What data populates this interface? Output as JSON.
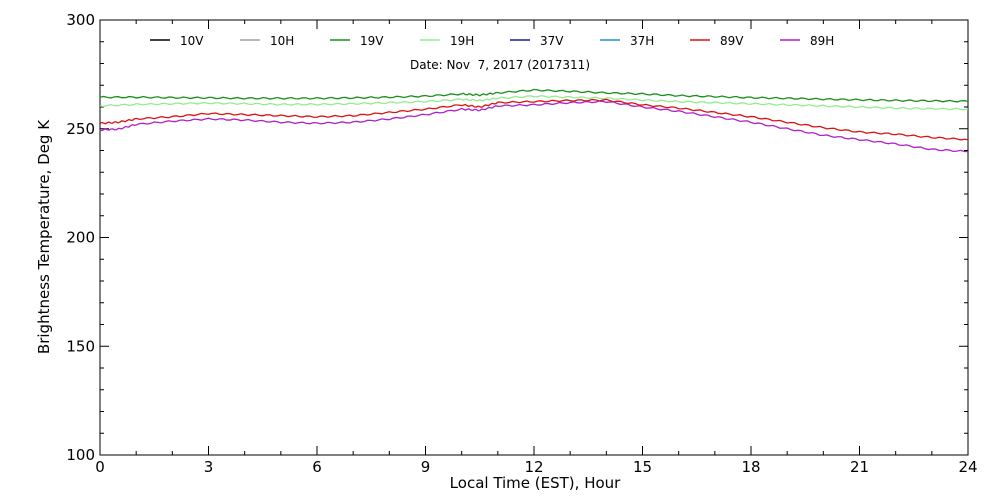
{
  "chart_data": {
    "type": "line",
    "subtitle": "Date: Nov  7, 2017 (2017311)",
    "xlabel": "Local Time (EST), Hour",
    "ylabel": "Brightness Temperature, Deg K",
    "xlim": [
      0,
      24
    ],
    "ylim": [
      100,
      300
    ],
    "x_ticks": [
      0,
      3,
      6,
      9,
      12,
      15,
      18,
      21,
      24
    ],
    "y_ticks": [
      100,
      150,
      200,
      250,
      300
    ],
    "grid": false,
    "legend_position": "top",
    "series": [
      {
        "name": "10V",
        "color": "#000000",
        "x": [],
        "values": []
      },
      {
        "name": "10H",
        "color": "#a0a0a0",
        "x": [],
        "values": []
      },
      {
        "name": "19V",
        "color": "#1a8f1a",
        "x": [
          0,
          1,
          2,
          3,
          4,
          5,
          6,
          7,
          8,
          9,
          10,
          10.5,
          11,
          12,
          13,
          14,
          15,
          16,
          17,
          18,
          19,
          20,
          21,
          22,
          23,
          24
        ],
        "values": [
          264.5,
          264.5,
          264.3,
          264.2,
          264.0,
          264.0,
          264.0,
          264.2,
          264.5,
          265.0,
          266.0,
          265.5,
          266.5,
          267.8,
          267.2,
          266.5,
          266.0,
          265.2,
          264.8,
          264.3,
          264.0,
          263.6,
          263.3,
          263.0,
          262.8,
          262.6
        ]
      },
      {
        "name": "19H",
        "color": "#90ee90",
        "x": [
          0,
          1,
          2,
          3,
          4,
          5,
          6,
          7,
          8,
          9,
          10,
          10.5,
          11,
          12,
          13,
          14,
          15,
          16,
          17,
          18,
          19,
          20,
          21,
          22,
          23,
          24
        ],
        "values": [
          260.5,
          261.2,
          261.5,
          261.8,
          261.5,
          261.2,
          261.2,
          261.5,
          262.0,
          262.5,
          263.5,
          263.0,
          264.0,
          265.0,
          264.5,
          264.0,
          263.2,
          262.5,
          262.0,
          261.5,
          261.0,
          260.5,
          260.0,
          259.5,
          259.2,
          259.0
        ]
      },
      {
        "name": "37V",
        "color": "#1c1c8f",
        "x": [],
        "values": []
      },
      {
        "name": "37H",
        "color": "#1e90c8",
        "x": [],
        "values": []
      },
      {
        "name": "89V",
        "color": "#dd1111",
        "x": [
          0,
          0.5,
          1,
          2,
          3,
          4,
          5,
          6,
          7,
          8,
          9,
          10,
          10.5,
          11,
          12,
          13,
          14,
          15,
          16,
          17,
          18,
          19,
          20,
          21,
          22,
          23,
          24
        ],
        "values": [
          252.5,
          253.0,
          254.5,
          255.5,
          257.0,
          256.5,
          256.0,
          255.5,
          256.0,
          257.5,
          259.0,
          261.0,
          260.0,
          262.0,
          262.5,
          263.0,
          263.2,
          261.0,
          259.5,
          257.5,
          255.5,
          253.0,
          250.5,
          248.5,
          247.5,
          246.0,
          245.0
        ]
      },
      {
        "name": "89H",
        "color": "#b020c8",
        "x": [
          0,
          0.5,
          1,
          2,
          3,
          4,
          5,
          6,
          7,
          8,
          9,
          10,
          10.5,
          11,
          12,
          13,
          14,
          15,
          16,
          17,
          18,
          19,
          20,
          21,
          22,
          23,
          24
        ],
        "values": [
          249.5,
          249.8,
          252.0,
          253.5,
          254.5,
          254.0,
          253.0,
          252.5,
          253.0,
          254.5,
          256.5,
          259.0,
          258.5,
          260.5,
          261.0,
          262.0,
          262.5,
          260.0,
          258.0,
          255.5,
          253.0,
          250.0,
          247.0,
          245.0,
          243.0,
          240.5,
          239.5
        ]
      }
    ]
  }
}
